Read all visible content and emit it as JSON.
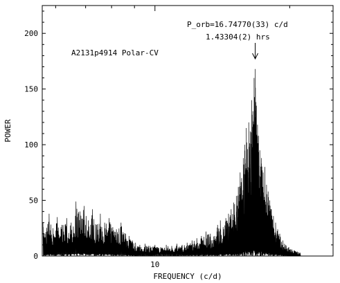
{
  "chart_data": {
    "type": "line",
    "title": "",
    "xlabel": "FREQUENCY (c/d)",
    "ylabel": "POWER",
    "xscale": "log",
    "xlim": [
      5.6,
      25
    ],
    "ylim": [
      0,
      225
    ],
    "yticks": [
      0,
      50,
      100,
      150,
      200
    ],
    "xticks": [
      10
    ],
    "grid": false,
    "annotations": {
      "object": "A2131p4914 Polar-CV",
      "period_line1": "P_orb=16.74770(33) c/d",
      "period_line2": "1.43304(2) hrs",
      "arrow_x": 16.7477
    },
    "series": [
      {
        "peaks": [
          [
            5.62,
            30
          ],
          [
            5.68,
            20
          ],
          [
            5.8,
            38
          ],
          [
            5.92,
            25
          ],
          [
            6.05,
            35
          ],
          [
            6.2,
            28
          ],
          [
            6.35,
            34
          ],
          [
            6.5,
            30
          ],
          [
            6.66,
            49
          ],
          [
            6.8,
            40
          ],
          [
            6.95,
            45
          ],
          [
            7.1,
            32
          ],
          [
            7.25,
            42
          ],
          [
            7.4,
            28
          ],
          [
            7.55,
            38
          ],
          [
            7.72,
            30
          ],
          [
            7.9,
            34
          ],
          [
            8.05,
            26
          ],
          [
            8.2,
            24
          ],
          [
            8.4,
            30
          ],
          [
            8.6,
            20
          ],
          [
            8.75,
            18
          ],
          [
            8.9,
            14
          ],
          [
            9.05,
            12
          ],
          [
            9.25,
            10
          ],
          [
            9.5,
            11
          ],
          [
            9.75,
            9
          ],
          [
            10.0,
            10
          ],
          [
            10.3,
            8
          ],
          [
            10.6,
            10
          ],
          [
            10.9,
            9
          ],
          [
            11.2,
            11
          ],
          [
            11.5,
            10
          ],
          [
            11.8,
            12
          ],
          [
            12.1,
            14
          ],
          [
            12.4,
            16
          ],
          [
            12.7,
            18
          ],
          [
            13.0,
            22
          ],
          [
            13.3,
            20
          ],
          [
            13.6,
            18
          ],
          [
            13.8,
            28
          ],
          [
            14.0,
            32
          ],
          [
            14.2,
            26
          ],
          [
            14.4,
            34
          ],
          [
            14.6,
            38
          ],
          [
            14.8,
            42
          ],
          [
            15.0,
            48
          ],
          [
            15.2,
            54
          ],
          [
            15.35,
            62
          ],
          [
            15.5,
            75
          ],
          [
            15.62,
            70
          ],
          [
            15.75,
            88
          ],
          [
            15.87,
            100
          ],
          [
            16.0,
            115
          ],
          [
            16.1,
            96
          ],
          [
            16.2,
            120
          ],
          [
            16.32,
            112
          ],
          [
            16.45,
            140
          ],
          [
            16.55,
            130
          ],
          [
            16.65,
            160
          ],
          [
            16.75,
            168
          ],
          [
            16.85,
            135
          ],
          [
            16.95,
            118
          ],
          [
            17.05,
            108
          ],
          [
            17.15,
            95
          ],
          [
            17.3,
            88
          ],
          [
            17.45,
            75
          ],
          [
            17.6,
            80
          ],
          [
            17.75,
            64
          ],
          [
            17.9,
            58
          ],
          [
            18.05,
            50
          ],
          [
            18.2,
            42
          ],
          [
            18.4,
            36
          ],
          [
            18.6,
            30
          ],
          [
            18.8,
            24
          ],
          [
            19.0,
            20
          ],
          [
            19.3,
            14
          ],
          [
            19.6,
            10
          ],
          [
            19.9,
            8
          ],
          [
            20.2,
            6
          ],
          [
            20.5,
            5
          ],
          [
            20.8,
            4
          ],
          [
            21.1,
            3
          ]
        ]
      }
    ]
  }
}
